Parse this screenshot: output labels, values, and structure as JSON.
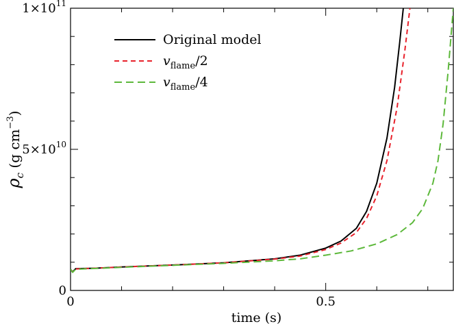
{
  "chart_data": {
    "type": "line",
    "xlabel": "time (s)",
    "ylabel": {
      "main": "ρ",
      "sub": "c",
      "units_pre": " (g cm",
      "units_sup": "−3",
      "units_post": ")"
    },
    "xlim": [
      0,
      0.75
    ],
    "ylim": [
      0,
      100000000000
    ],
    "x_ticks": [
      {
        "value": 0,
        "label": "0"
      },
      {
        "value": 0.5,
        "label": "0.5"
      }
    ],
    "y_ticks": [
      {
        "value": 0,
        "label": "0",
        "mant": "",
        "exp": ""
      },
      {
        "value": 50000000000,
        "label": "",
        "mant": "5×10",
        "exp": "10"
      },
      {
        "value": 100000000000,
        "label": "",
        "mant": "1×10",
        "exp": "11"
      }
    ],
    "legend": {
      "position": "top-left"
    },
    "series": [
      {
        "name": "Original model",
        "name_main": "Original model",
        "name_sub": "",
        "name_post": "",
        "color": "#000000",
        "dash": "",
        "points": [
          [
            0,
            7500000000.0
          ],
          [
            0.004,
            6600000000.0
          ],
          [
            0.01,
            7700000000.0
          ],
          [
            0.05,
            7900000000.0
          ],
          [
            0.1,
            8300000000.0
          ],
          [
            0.2,
            9000000000.0
          ],
          [
            0.3,
            9800000000.0
          ],
          [
            0.4,
            11200000000.0
          ],
          [
            0.45,
            12500000000.0
          ],
          [
            0.5,
            15000000000.0
          ],
          [
            0.53,
            17500000000.0
          ],
          [
            0.56,
            22000000000.0
          ],
          [
            0.58,
            28000000000.0
          ],
          [
            0.6,
            38000000000.0
          ],
          [
            0.62,
            54000000000.0
          ],
          [
            0.635,
            72000000000.0
          ],
          [
            0.645,
            88000000000.0
          ],
          [
            0.652,
            100000000000.0
          ]
        ]
      },
      {
        "name": "vflame/2",
        "name_main": "v",
        "name_sub": "flame",
        "name_post": "/2",
        "color": "#e8202a",
        "dash": "7,5",
        "points": [
          [
            0,
            7500000000.0
          ],
          [
            0.004,
            6500000000.0
          ],
          [
            0.01,
            7600000000.0
          ],
          [
            0.05,
            7900000000.0
          ],
          [
            0.1,
            8300000000.0
          ],
          [
            0.2,
            9000000000.0
          ],
          [
            0.3,
            9800000000.0
          ],
          [
            0.4,
            11100000000.0
          ],
          [
            0.45,
            12200000000.0
          ],
          [
            0.5,
            14500000000.0
          ],
          [
            0.53,
            16800000000.0
          ],
          [
            0.56,
            20500000000.0
          ],
          [
            0.58,
            25500000000.0
          ],
          [
            0.6,
            33500000000.0
          ],
          [
            0.62,
            46000000000.0
          ],
          [
            0.64,
            65000000000.0
          ],
          [
            0.655,
            85000000000.0
          ],
          [
            0.665,
            100000000000.0
          ]
        ]
      },
      {
        "name": "vflame/4",
        "name_main": "v",
        "name_sub": "flame",
        "name_post": "/4",
        "color": "#5cb83a",
        "dash": "11,6",
        "points": [
          [
            0,
            7500000000.0
          ],
          [
            0.004,
            6400000000.0
          ],
          [
            0.01,
            7500000000.0
          ],
          [
            0.05,
            7800000000.0
          ],
          [
            0.1,
            8200000000.0
          ],
          [
            0.2,
            8900000000.0
          ],
          [
            0.3,
            9600000000.0
          ],
          [
            0.4,
            10500000000.0
          ],
          [
            0.45,
            11200000000.0
          ],
          [
            0.5,
            12500000000.0
          ],
          [
            0.55,
            14000000000.0
          ],
          [
            0.6,
            16500000000.0
          ],
          [
            0.64,
            19800000000.0
          ],
          [
            0.67,
            24000000000.0
          ],
          [
            0.69,
            29000000000.0
          ],
          [
            0.71,
            38000000000.0
          ],
          [
            0.72,
            46000000000.0
          ],
          [
            0.73,
            59000000000.0
          ],
          [
            0.74,
            78000000000.0
          ],
          [
            0.75,
            100000000000.0
          ]
        ]
      }
    ]
  }
}
